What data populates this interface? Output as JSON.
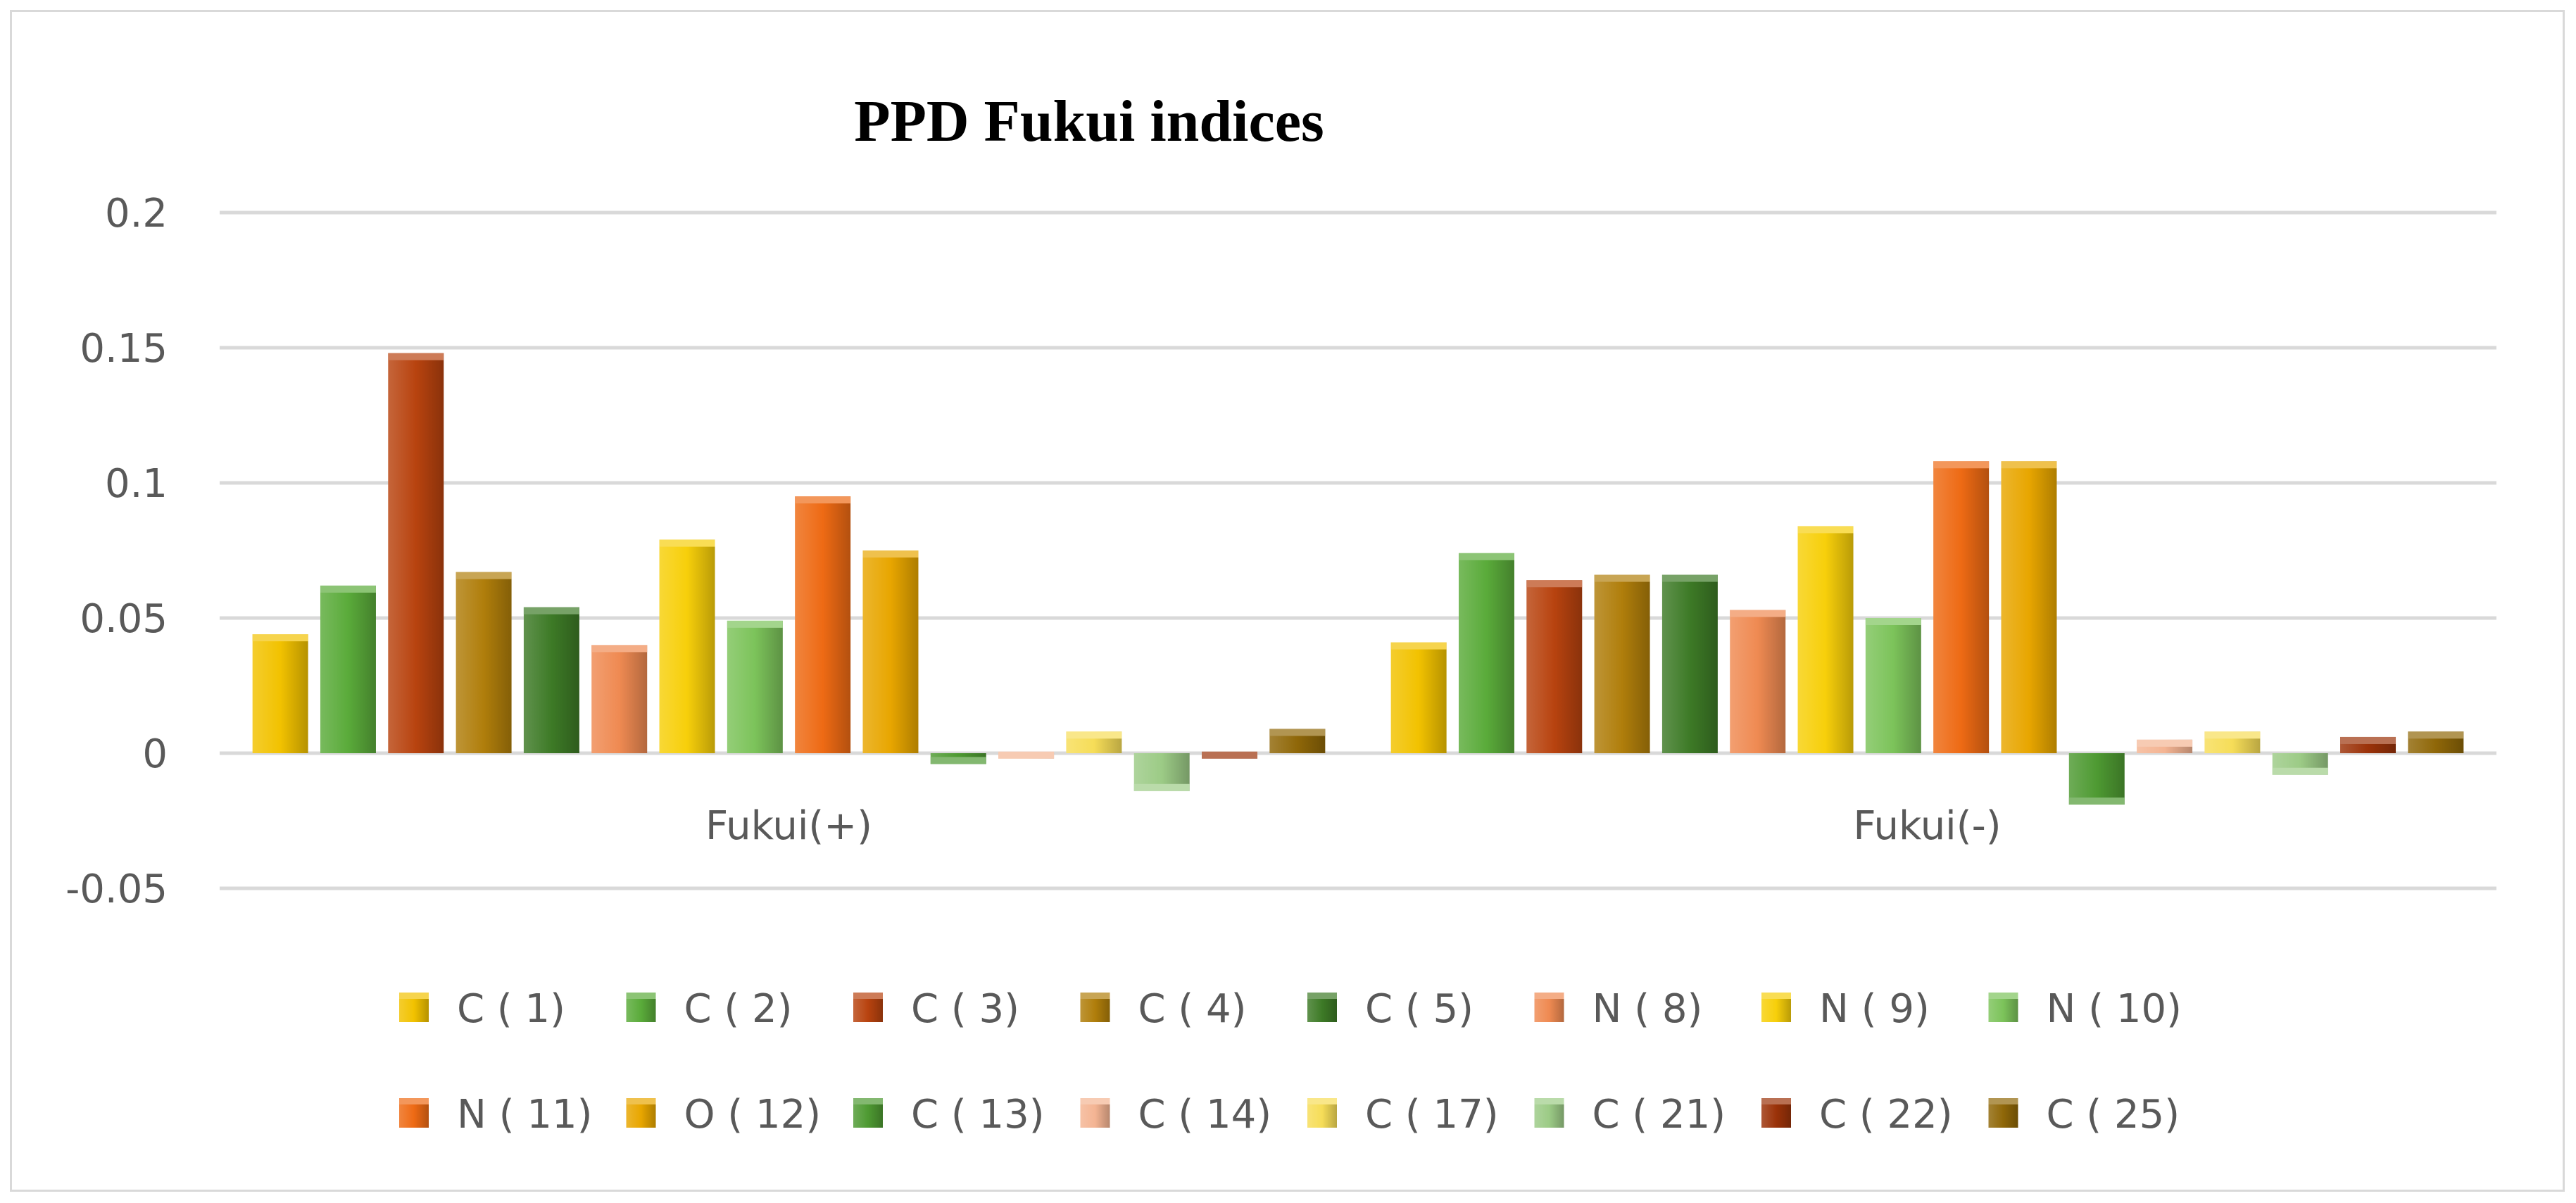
{
  "chart_data": {
    "type": "bar",
    "title": "PPD Fukui indices",
    "xlabel": "",
    "ylabel": "",
    "categories": [
      "Fukui(+)",
      "Fukui(-)"
    ],
    "ylim": [
      -0.05,
      0.2
    ],
    "yticks": [
      "0.2",
      "0.15",
      "0.1",
      "0.05",
      "0",
      "-0.05"
    ],
    "grid": true,
    "legend_position": "bottom",
    "series": [
      {
        "name": "C (  1)",
        "values": [
          0.044,
          0.041
        ],
        "color": "#f2c200"
      },
      {
        "name": "C (  2)",
        "values": [
          0.062,
          0.074
        ],
        "color": "#5aab3a"
      },
      {
        "name": "C (  3)",
        "values": [
          0.148,
          0.064
        ],
        "color": "#b8430f"
      },
      {
        "name": "C (  4)",
        "values": [
          0.067,
          0.066
        ],
        "color": "#b07e0b"
      },
      {
        "name": "C (  5)",
        "values": [
          0.054,
          0.066
        ],
        "color": "#3d7a26"
      },
      {
        "name": "N (  8)",
        "values": [
          0.04,
          0.053
        ],
        "color": "#ef8a52"
      },
      {
        "name": "N (  9)",
        "values": [
          0.079,
          0.084
        ],
        "color": "#f7cf0a"
      },
      {
        "name": "N ( 10)",
        "values": [
          0.049,
          0.05
        ],
        "color": "#7cc35a"
      },
      {
        "name": "N ( 11)",
        "values": [
          0.095,
          0.108
        ],
        "color": "#ee6a14"
      },
      {
        "name": "O ( 12)",
        "values": [
          0.075,
          0.108
        ],
        "color": "#e8a600"
      },
      {
        "name": "C ( 13)",
        "values": [
          -0.004,
          -0.019
        ],
        "color": "#4e9a32"
      },
      {
        "name": "C ( 14)",
        "values": [
          -0.002,
          0.005
        ],
        "color": "#f4b493"
      },
      {
        "name": "C ( 17)",
        "values": [
          0.008,
          0.008
        ],
        "color": "#f6dd58"
      },
      {
        "name": "C ( 21)",
        "values": [
          -0.014,
          -0.008
        ],
        "color": "#9ccb86"
      },
      {
        "name": "C ( 22)",
        "values": [
          -0.002,
          0.006
        ],
        "color": "#9b3209"
      },
      {
        "name": "C ( 25)",
        "values": [
          0.009,
          0.008
        ],
        "color": "#8f6708"
      }
    ]
  }
}
